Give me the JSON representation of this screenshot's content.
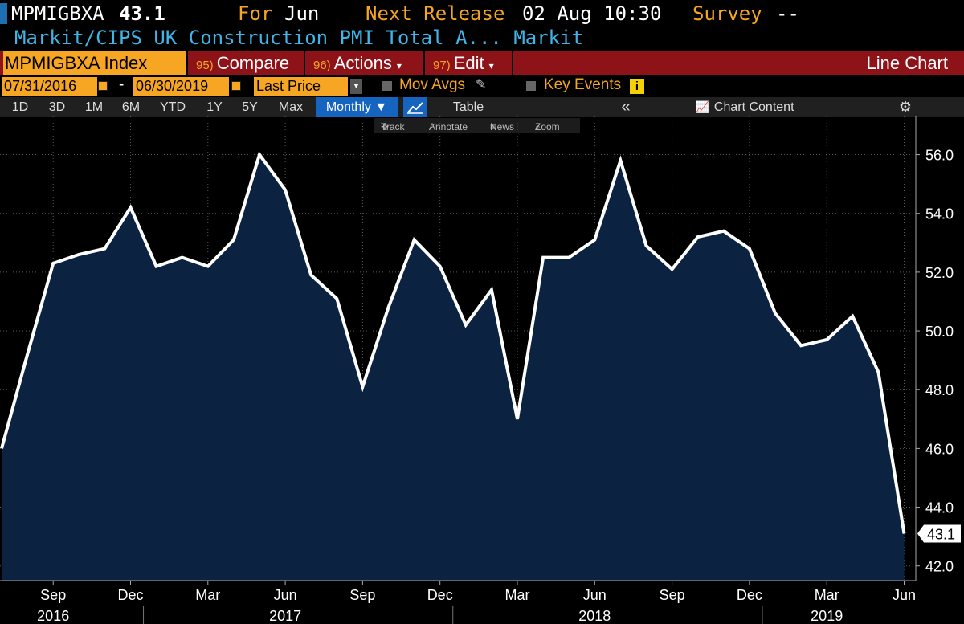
{
  "header": {
    "ticker": "MPMIGBXA",
    "last_value": "43.1",
    "for_label": "For",
    "for_period": "Jun",
    "next_release_label": "Next Release",
    "next_release_value": "02 Aug 10:30",
    "survey_label": "Survey",
    "survey_value": "--",
    "description": "Markit/CIPS UK Construction PMI Total A... Markit"
  },
  "toolbar": {
    "security": "MPMIGBXA Index",
    "compare_num": "95)",
    "compare": "Compare",
    "actions_num": "96)",
    "actions": "Actions",
    "edit_num": "97)",
    "edit": "Edit",
    "chart_type": "Line Chart"
  },
  "options": {
    "start_date": "07/31/2016",
    "dash": "-",
    "end_date": "06/30/2019",
    "field": "Last Price",
    "mov_avgs": "Mov Avgs",
    "key_events": "Key Events"
  },
  "periods": {
    "d1": "1D",
    "d3": "3D",
    "m1": "1M",
    "m6": "6M",
    "ytd": "YTD",
    "y1": "1Y",
    "y5": "5Y",
    "max": "Max",
    "frequency": "Monthly ▼",
    "table": "Table",
    "collapse": "«",
    "chart_content": "Chart Content"
  },
  "tools": {
    "track": "Track",
    "annotate": "Annotate",
    "news": "News",
    "zoom": "Zoom"
  },
  "colors": {
    "accent": "#f6a623",
    "toolbar_red": "#8d1318",
    "area_fill": "#0c2241",
    "line": "#ffffff",
    "title_blue": "#3fb5e8"
  },
  "chart_data": {
    "type": "area",
    "title": "",
    "x_tick_labels": [
      "Sep",
      "Dec",
      "Mar",
      "Jun",
      "Sep",
      "Dec",
      "Mar",
      "Jun",
      "Sep",
      "Dec",
      "Mar",
      "Jun"
    ],
    "x_year_labels": [
      {
        "month": "2016-09",
        "label": "2016"
      },
      {
        "month": "2017-06",
        "label": "2017"
      },
      {
        "month": "2018-06",
        "label": "2018"
      },
      {
        "month": "2019-03",
        "label": "2019"
      }
    ],
    "y_ticks": [
      "42.0",
      "44.0",
      "46.0",
      "48.0",
      "50.0",
      "52.0",
      "54.0",
      "56.0"
    ],
    "ylim": [
      41.5,
      57.3
    ],
    "last_value_label": "43.1",
    "months": [
      "2016-07",
      "2016-08",
      "2016-09",
      "2016-10",
      "2016-11",
      "2016-12",
      "2017-01",
      "2017-02",
      "2017-03",
      "2017-04",
      "2017-05",
      "2017-06",
      "2017-07",
      "2017-08",
      "2017-09",
      "2017-10",
      "2017-11",
      "2017-12",
      "2018-01",
      "2018-02",
      "2018-03",
      "2018-04",
      "2018-05",
      "2018-06",
      "2018-07",
      "2018-08",
      "2018-09",
      "2018-10",
      "2018-11",
      "2018-12",
      "2019-01",
      "2019-02",
      "2019-03",
      "2019-04",
      "2019-05",
      "2019-06"
    ],
    "values": [
      46.0,
      49.2,
      52.3,
      52.6,
      52.8,
      54.2,
      52.2,
      52.5,
      52.2,
      53.1,
      56.0,
      54.8,
      51.9,
      51.1,
      48.1,
      50.8,
      53.1,
      52.2,
      50.2,
      51.4,
      47.0,
      52.5,
      52.5,
      53.1,
      55.8,
      52.9,
      52.1,
      53.2,
      53.4,
      52.8,
      50.6,
      49.5,
      49.7,
      50.5,
      48.6,
      43.1
    ]
  }
}
